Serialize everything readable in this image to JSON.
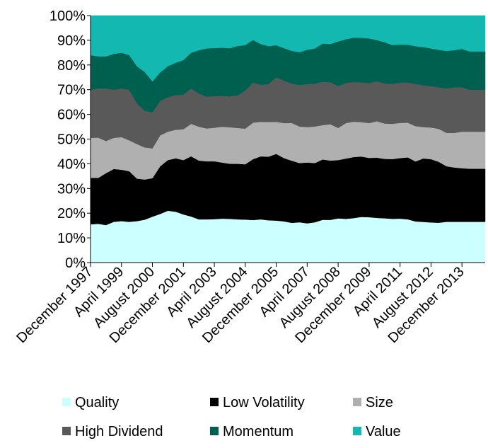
{
  "chart_data": {
    "type": "area",
    "stacked": true,
    "normalized": true,
    "x": [
      "December 1997",
      "",
      "",
      "",
      "April 1999",
      "",
      "",
      "",
      "August 2000",
      "",
      "",
      "",
      "December 2001",
      "",
      "",
      "",
      "April 2003",
      "",
      "",
      "",
      "August 2004",
      "",
      "",
      "",
      "December 2005",
      "",
      "",
      "",
      "April 2007",
      "",
      "",
      "",
      "August 2008",
      "",
      "",
      "",
      "December 2009",
      "",
      "",
      "",
      "April 2011",
      "",
      "",
      "",
      "August 2012",
      "",
      "",
      "",
      "December 2013",
      "",
      "",
      ""
    ],
    "x_tick_labels": [
      "December 1997",
      "April 1999",
      "August 2000",
      "December 2001",
      "April 2003",
      "August 2004",
      "December 2005",
      "April 2007",
      "August 2008",
      "December 2009",
      "April 2011",
      "August 2012",
      "December 2013"
    ],
    "y_tick_labels": [
      "0%",
      "10%",
      "20%",
      "30%",
      "40%",
      "50%",
      "60%",
      "70%",
      "80%",
      "90%",
      "100%"
    ],
    "ylim": [
      0,
      100
    ],
    "grid": false,
    "legend_position": "bottom",
    "series": [
      {
        "name": "Quality",
        "color": "#ccffff",
        "values": [
          15.5,
          15.7,
          15.2,
          16.5,
          16.8,
          16.5,
          16.8,
          17.5,
          18.5,
          19.7,
          21,
          20.5,
          19.5,
          18,
          17.5,
          17.5,
          17.6,
          17.8,
          17.7,
          17.5,
          17.5,
          17.5,
          17.5,
          17.3,
          17.0,
          16.5,
          15.8,
          16.0,
          15.5,
          16,
          16.8,
          17.3,
          17.9,
          18.5,
          19.1,
          19.5,
          19.3,
          19.0,
          18.8,
          18.6,
          18.5,
          18.3,
          17.5,
          16.8,
          16.5,
          16.3,
          16.5,
          16.5,
          16.5,
          16.5,
          16.5,
          16.5
        ]
      },
      {
        "name": "Low Volatility",
        "color": "#000000",
        "values": [
          18.8,
          18.6,
          21.0,
          21.4,
          20.8,
          20.5,
          17.2,
          16.4,
          15.5,
          19.3,
          20.5,
          21.5,
          22.0,
          23.5,
          23.8,
          23.5,
          23.4,
          22.7,
          22.3,
          22.5,
          22.5,
          25.0,
          25.5,
          26.0,
          27,
          25.3,
          24.7,
          23.5,
          24.0,
          23.5,
          23.7,
          24.0,
          23.6,
          25.5,
          26.2,
          25.8,
          25.2,
          25.6,
          25.2,
          25.4,
          25.5,
          26.2,
          25.5,
          26.2,
          26.0,
          24.9,
          22.5,
          22.0,
          21.7,
          21.5,
          21.5,
          21.5
        ]
      },
      {
        "name": "Size",
        "color": "#b0b0b0",
        "values": [
          16.2,
          16.3,
          13.0,
          12.6,
          13.2,
          12.5,
          14.0,
          13.1,
          12.0,
          12.5,
          11.5,
          11.5,
          12.5,
          12.7,
          13.7,
          13.3,
          13.6,
          14.5,
          14.8,
          14.5,
          14.5,
          15.0,
          14.0,
          14.2,
          13.0,
          14.0,
          15.0,
          14.5,
          14.0,
          14.5,
          13.5,
          14.7,
          13.0,
          15.0,
          15.2,
          14.7,
          14.8,
          15.5,
          15.0,
          15.0,
          14.8,
          14.7,
          15.0,
          13.0,
          13.0,
          13.5,
          13.5,
          14.0,
          14.8,
          15.0,
          15.0,
          15.0
        ]
      },
      {
        "name": "High Dividend",
        "color": "#595959",
        "values": [
          19.5,
          19.9,
          21.3,
          19.5,
          19.7,
          20.5,
          16.5,
          15.0,
          14.5,
          14.0,
          14.0,
          14.0,
          14.0,
          13.8,
          13.5,
          12.9,
          12.8,
          12.5,
          12.5,
          13.2,
          15.5,
          16.5,
          15.0,
          15.5,
          18.0,
          17.0,
          15.7,
          16.5,
          17.0,
          17.0,
          17.0,
          17.0,
          17.0,
          17.0,
          17.0,
          17.0,
          17.0,
          17.0,
          17.0,
          17.0,
          17.0,
          17.0,
          18.0,
          17.2,
          17.0,
          17.0,
          18.0,
          18.5,
          18.0,
          17.0,
          17.0,
          17.0
        ]
      },
      {
        "name": "Momentum",
        "color": "#006050",
        "values": [
          14.0,
          13.0,
          13.0,
          14.5,
          14.5,
          14.0,
          15.0,
          15.8,
          12.5,
          11.5,
          12.5,
          13.0,
          14.0,
          14.0,
          17.5,
          19.5,
          19.5,
          19.5,
          19.5,
          20.0,
          18.5,
          17.5,
          16.5,
          15.5,
          13.0,
          13.0,
          13.0,
          13.0,
          13.5,
          14.0,
          15.0,
          15.5,
          18.0,
          18.5,
          19.0,
          19.0,
          19.0,
          17.5,
          17.5,
          16.5,
          16.0,
          16.0,
          16.0,
          15.8,
          15.5,
          15.3,
          15.2,
          15.0,
          15.5,
          15.5,
          15.5,
          15.5
        ]
      },
      {
        "name": "Value",
        "color": "#13b8b0",
        "values": [
          16.0,
          16.5,
          16.5,
          15.5,
          15.0,
          16.0,
          20.5,
          23.0,
          26.5,
          23.0,
          20.5,
          19.0,
          18.0,
          14.5,
          14.0,
          13.3,
          13.1,
          13.0,
          13.2,
          12.3,
          12.0,
          10.0,
          11.5,
          12.5,
          12.0,
          13.0,
          14.0,
          14.5,
          13.5,
          13.0,
          11.0,
          11.5,
          10.5,
          10.0,
          9.5,
          9.5,
          9.7,
          10.4,
          11.3,
          12.5,
          12.2,
          12.3,
          13.0,
          13.0,
          13.5,
          14.0,
          14.3,
          14.0,
          13.5,
          14.5,
          14.5,
          14.5
        ]
      }
    ]
  }
}
